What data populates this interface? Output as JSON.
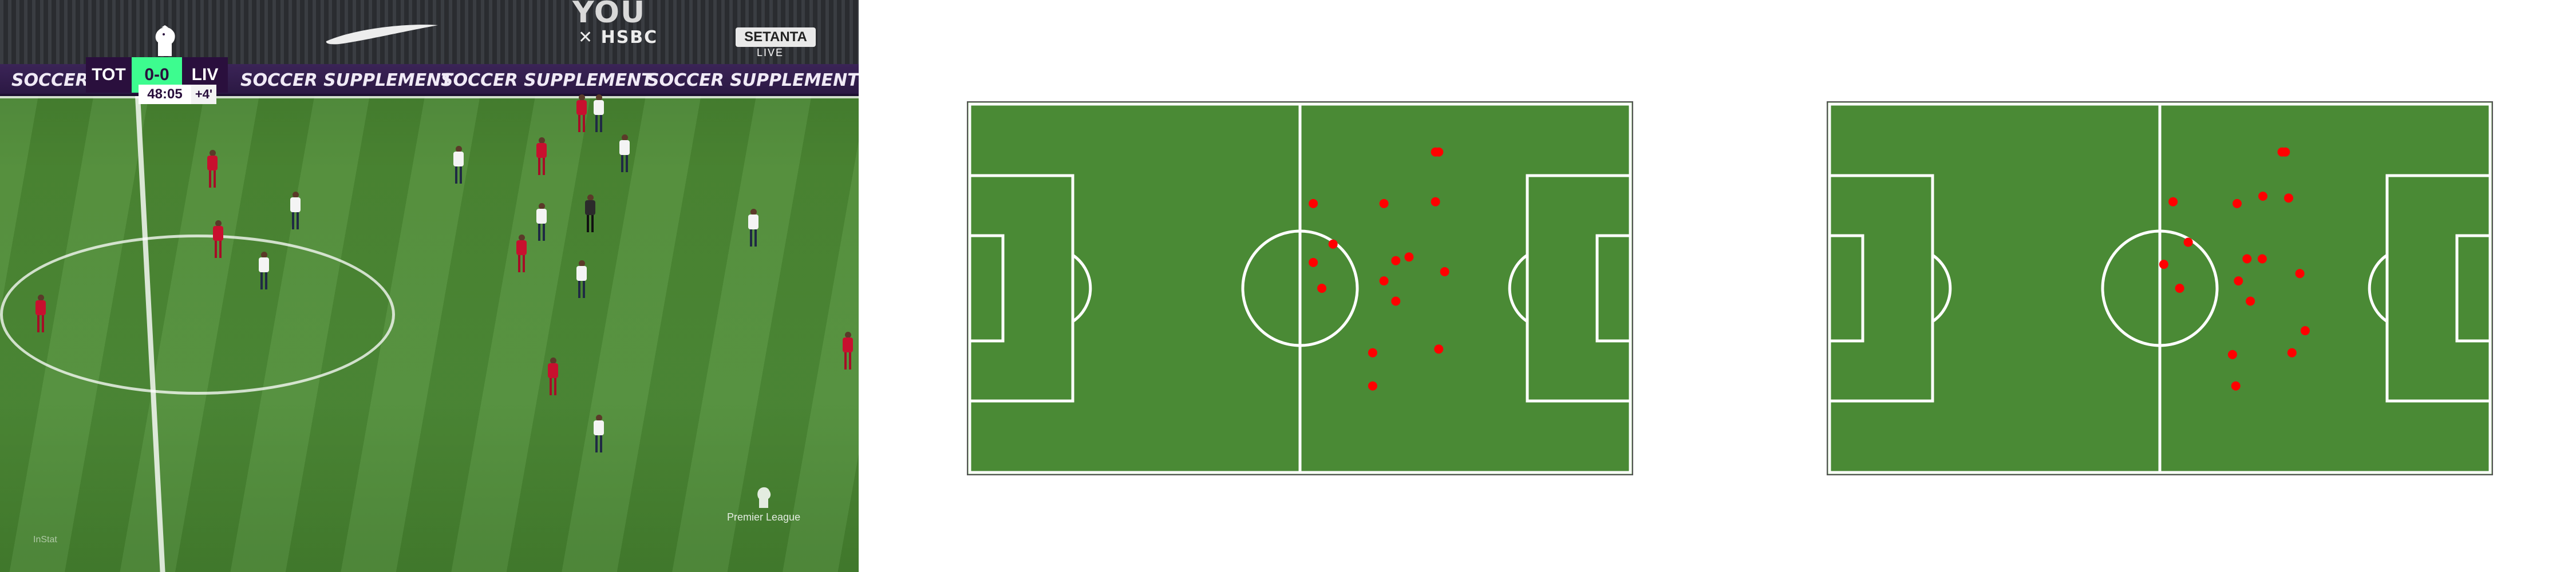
{
  "scoreboard": {
    "home_team": "TOT",
    "score": "0-0",
    "away_team": "LIV",
    "match_clock": "48:05",
    "added_time": "+4'"
  },
  "broadcast": {
    "sponsor_you": "YOU",
    "sponsor_hsbc": "✕ HSBC",
    "setanta": "SETANTA",
    "live": "LIVE",
    "ad_board_text": "SOCCER SUPPLEMENT",
    "watermark_league": "Premier League",
    "studio_mark": "InStat"
  },
  "colors": {
    "pitch_green": "#4a8a35",
    "pitch_line": "#ffffff",
    "dot_red": "#ff0000",
    "home_kit": "#f4f4f4",
    "away_kit": "#c8102e",
    "score_green": "#3dfc8f",
    "scorebug_purple": "#2a0f3d"
  },
  "radar_views": [
    {
      "players": [
        [
          0.71,
          0.13
        ],
        [
          0.705,
          0.13
        ],
        [
          0.52,
          0.27
        ],
        [
          0.627,
          0.27
        ],
        [
          0.705,
          0.265
        ],
        [
          0.55,
          0.38
        ],
        [
          0.52,
          0.43
        ],
        [
          0.645,
          0.425
        ],
        [
          0.665,
          0.415
        ],
        [
          0.719,
          0.455
        ],
        [
          0.533,
          0.5
        ],
        [
          0.627,
          0.48
        ],
        [
          0.645,
          0.535
        ],
        [
          0.61,
          0.675
        ],
        [
          0.71,
          0.665
        ],
        [
          0.61,
          0.765
        ]
      ]
    },
    {
      "players": [
        [
          0.69,
          0.13
        ],
        [
          0.685,
          0.13
        ],
        [
          0.52,
          0.265
        ],
        [
          0.617,
          0.27
        ],
        [
          0.656,
          0.25
        ],
        [
          0.695,
          0.255
        ],
        [
          0.543,
          0.375
        ],
        [
          0.632,
          0.42
        ],
        [
          0.655,
          0.42
        ],
        [
          0.506,
          0.435
        ],
        [
          0.712,
          0.46
        ],
        [
          0.619,
          0.48
        ],
        [
          0.53,
          0.5
        ],
        [
          0.637,
          0.535
        ],
        [
          0.72,
          0.615
        ],
        [
          0.61,
          0.68
        ],
        [
          0.7,
          0.675
        ],
        [
          0.615,
          0.765
        ]
      ]
    }
  ]
}
